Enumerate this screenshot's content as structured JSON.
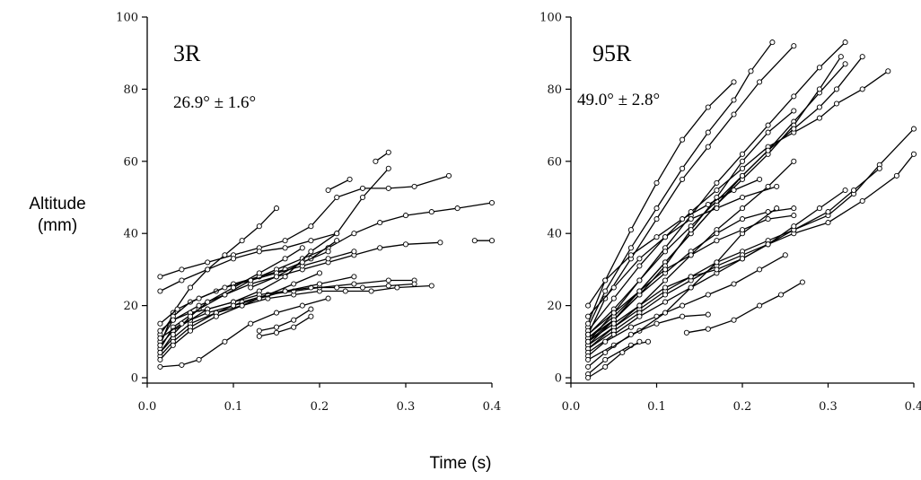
{
  "figure": {
    "ylabel_line1": "Altitude",
    "ylabel_line2": "(mm)",
    "xlabel": "Time (s)"
  },
  "chart_data": [
    {
      "type": "line",
      "title": "3R",
      "annotation": "26.9° ± 1.6°",
      "xlim": [
        0,
        0.4
      ],
      "ylim": [
        0,
        100
      ],
      "xticks": [
        "0.0",
        "0.1",
        "0.2",
        "0.3",
        "0.4"
      ],
      "yticks": [
        "0",
        "20",
        "40",
        "60",
        "80",
        "100"
      ],
      "series": [
        {
          "x": [
            0.015,
            0.03,
            0.05,
            0.07,
            0.09,
            0.11,
            0.13,
            0.15
          ],
          "y": [
            9,
            18,
            25,
            30,
            34,
            38,
            42,
            47
          ]
        },
        {
          "x": [
            0.015,
            0.03,
            0.06,
            0.09,
            0.12,
            0.15,
            0.18,
            0.21,
            0.24,
            0.27,
            0.3,
            0.33,
            0.36,
            0.4
          ],
          "y": [
            8,
            14,
            19,
            23,
            27,
            30,
            33,
            36,
            40,
            43,
            45,
            46,
            47,
            48.5
          ]
        },
        {
          "x": [
            0.015,
            0.04,
            0.07,
            0.1,
            0.13,
            0.16,
            0.19,
            0.22,
            0.25,
            0.28,
            0.31,
            0.35
          ],
          "y": [
            28,
            30,
            32,
            34,
            36,
            38,
            42,
            50,
            52.5,
            52.5,
            53,
            56
          ]
        },
        {
          "x": [
            0.015,
            0.04,
            0.07,
            0.1,
            0.13,
            0.16,
            0.19,
            0.22,
            0.25,
            0.28
          ],
          "y": [
            24,
            27,
            30,
            33,
            35,
            36,
            38,
            40,
            50,
            58
          ]
        },
        {
          "x": [
            0.015,
            0.03,
            0.05,
            0.08,
            0.11,
            0.14,
            0.17,
            0.2,
            0.23,
            0.26,
            0.29,
            0.33
          ],
          "y": [
            7,
            11,
            15,
            18,
            20,
            22,
            23,
            24,
            24,
            24,
            25,
            25.5
          ]
        },
        {
          "x": [
            0.015,
            0.03,
            0.05,
            0.08,
            0.11,
            0.14,
            0.17,
            0.2,
            0.24,
            0.28,
            0.31
          ],
          "y": [
            6,
            10,
            14,
            18,
            21,
            23,
            24,
            25,
            26,
            27,
            27
          ]
        },
        {
          "x": [
            0.015,
            0.03,
            0.06,
            0.09,
            0.12,
            0.15,
            0.18,
            0.21,
            0.24,
            0.27,
            0.3,
            0.34
          ],
          "y": [
            10,
            16,
            20,
            23,
            26,
            28,
            30,
            32,
            34,
            36,
            37,
            37.5
          ]
        },
        {
          "x": [
            0.015,
            0.03,
            0.05,
            0.08,
            0.1,
            0.13,
            0.16,
            0.19,
            0.22
          ],
          "y": [
            12,
            17,
            21,
            24,
            26,
            28,
            30,
            33,
            38
          ]
        },
        {
          "x": [
            0.015,
            0.03,
            0.05,
            0.08,
            0.11,
            0.14,
            0.17,
            0.2
          ],
          "y": [
            5,
            9,
            13,
            17,
            20,
            23,
            26,
            29
          ]
        },
        {
          "x": [
            0.015,
            0.035,
            0.06,
            0.09,
            0.12,
            0.15,
            0.18,
            0.21,
            0.24
          ],
          "y": [
            15,
            19,
            22,
            25,
            27,
            29,
            31,
            33,
            35
          ]
        },
        {
          "x": [
            0.015,
            0.03,
            0.05,
            0.07,
            0.1,
            0.13,
            0.16,
            0.19,
            0.22
          ],
          "y": [
            13,
            16,
            18,
            19,
            21,
            24,
            28,
            35,
            40
          ]
        },
        {
          "x": [
            0.015,
            0.04,
            0.06,
            0.09,
            0.12,
            0.15,
            0.18,
            0.21
          ],
          "y": [
            3,
            3.5,
            5,
            10,
            15,
            18,
            20,
            22
          ]
        },
        {
          "x": [
            0.015,
            0.03,
            0.05,
            0.07,
            0.1,
            0.13,
            0.16,
            0.19,
            0.22,
            0.25,
            0.28,
            0.31
          ],
          "y": [
            9,
            13,
            16,
            19,
            21,
            23,
            24,
            25,
            25,
            25,
            25.5,
            26
          ]
        },
        {
          "x": [
            0.13,
            0.15,
            0.17,
            0.19
          ],
          "y": [
            11.5,
            12.5,
            14,
            17
          ]
        },
        {
          "x": [
            0.13,
            0.15,
            0.17,
            0.19
          ],
          "y": [
            13,
            14,
            16,
            19
          ]
        },
        {
          "x": [
            0.12,
            0.15,
            0.18,
            0.21
          ],
          "y": [
            25,
            28,
            32,
            35
          ]
        },
        {
          "x": [
            0.265,
            0.28
          ],
          "y": [
            60,
            62.5
          ]
        },
        {
          "x": [
            0.21,
            0.235
          ],
          "y": [
            52,
            55
          ]
        },
        {
          "x": [
            0.38,
            0.4
          ],
          "y": [
            38,
            38
          ]
        },
        {
          "x": [
            0.015,
            0.03,
            0.05,
            0.07,
            0.1,
            0.13,
            0.16,
            0.18
          ],
          "y": [
            7,
            12,
            17,
            21,
            25,
            29,
            33,
            36
          ]
        },
        {
          "x": [
            0.015,
            0.04,
            0.07,
            0.1,
            0.13,
            0.16,
            0.2,
            0.24
          ],
          "y": [
            11,
            15,
            18,
            20,
            22,
            24,
            26,
            28
          ]
        }
      ]
    },
    {
      "type": "line",
      "title": "95R",
      "annotation": "49.0° ± 2.8°",
      "xlim": [
        0,
        0.4
      ],
      "ylim": [
        0,
        100
      ],
      "xticks": [
        "0.0",
        "0.1",
        "0.2",
        "0.3",
        "0.4"
      ],
      "yticks": [
        "0",
        "20",
        "40",
        "60",
        "80",
        "100"
      ],
      "series": [
        {
          "x": [
            0.02,
            0.04,
            0.07,
            0.1,
            0.13,
            0.16,
            0.19,
            0.21,
            0.235
          ],
          "y": [
            14,
            24,
            36,
            47,
            58,
            68,
            77,
            85,
            93
          ]
        },
        {
          "x": [
            0.02,
            0.04,
            0.07,
            0.1,
            0.13,
            0.16,
            0.19,
            0.22,
            0.26
          ],
          "y": [
            12,
            22,
            33,
            44,
            55,
            64,
            73,
            82,
            92
          ]
        },
        {
          "x": [
            0.02,
            0.05,
            0.08,
            0.11,
            0.14,
            0.17,
            0.2,
            0.23,
            0.26,
            0.29,
            0.32
          ],
          "y": [
            10,
            18,
            27,
            36,
            45,
            54,
            62,
            70,
            78,
            86,
            93
          ]
        },
        {
          "x": [
            0.02,
            0.05,
            0.08,
            0.11,
            0.14,
            0.17,
            0.2,
            0.23,
            0.26,
            0.29,
            0.32
          ],
          "y": [
            9,
            16,
            24,
            32,
            40,
            48,
            56,
            63,
            71,
            79,
            87
          ]
        },
        {
          "x": [
            0.02,
            0.05,
            0.08,
            0.11,
            0.14,
            0.17,
            0.2,
            0.23,
            0.26,
            0.29,
            0.315
          ],
          "y": [
            11,
            17,
            24,
            32,
            40,
            48,
            55,
            62,
            70,
            80,
            89
          ]
        },
        {
          "x": [
            0.02,
            0.05,
            0.08,
            0.11,
            0.14,
            0.17,
            0.2,
            0.23,
            0.26,
            0.29,
            0.31,
            0.34,
            0.37
          ],
          "y": [
            13,
            22,
            31,
            39,
            46,
            52,
            58,
            64,
            68,
            72,
            76,
            80,
            85
          ]
        },
        {
          "x": [
            0.02,
            0.05,
            0.08,
            0.11,
            0.14,
            0.17,
            0.2,
            0.23,
            0.26,
            0.29,
            0.31,
            0.34
          ],
          "y": [
            12,
            19,
            27,
            35,
            42,
            49,
            56,
            63,
            69,
            75,
            80,
            89
          ]
        },
        {
          "x": [
            0.02,
            0.05,
            0.08,
            0.11,
            0.14,
            0.17,
            0.2,
            0.23,
            0.26
          ],
          "y": [
            11,
            16,
            23,
            31,
            41,
            50,
            60,
            68,
            74
          ]
        },
        {
          "x": [
            0.02,
            0.04,
            0.07,
            0.1,
            0.13,
            0.16,
            0.19
          ],
          "y": [
            15,
            27,
            41,
            54,
            66,
            75,
            82
          ]
        },
        {
          "x": [
            0.02,
            0.05,
            0.08,
            0.11,
            0.14,
            0.17,
            0.2,
            0.23,
            0.26
          ],
          "y": [
            8,
            14,
            20,
            27,
            34,
            41,
            47,
            53,
            60
          ]
        },
        {
          "x": [
            0.02,
            0.05,
            0.08,
            0.11,
            0.14,
            0.17,
            0.2,
            0.23,
            0.26
          ],
          "y": [
            10,
            16,
            23,
            29,
            35,
            40,
            44,
            46,
            47
          ]
        },
        {
          "x": [
            0.02,
            0.05,
            0.08,
            0.11,
            0.14,
            0.17,
            0.2,
            0.23,
            0.26,
            0.3,
            0.33,
            0.36,
            0.4
          ],
          "y": [
            9,
            14,
            19,
            24,
            28,
            32,
            35,
            38,
            41,
            45,
            51,
            59,
            69
          ]
        },
        {
          "x": [
            0.02,
            0.05,
            0.08,
            0.11,
            0.14,
            0.17,
            0.2,
            0.23,
            0.26,
            0.3,
            0.34,
            0.38,
            0.4
          ],
          "y": [
            8,
            13,
            18,
            23,
            27,
            31,
            34,
            37,
            40,
            43,
            49,
            56,
            62
          ]
        },
        {
          "x": [
            0.02,
            0.05,
            0.08,
            0.11,
            0.14,
            0.17,
            0.2,
            0.23,
            0.26,
            0.3,
            0.33,
            0.36
          ],
          "y": [
            7,
            12,
            17,
            21,
            25,
            29,
            33,
            37,
            41,
            46,
            52,
            58
          ]
        },
        {
          "x": [
            0.02,
            0.04,
            0.07,
            0.1,
            0.13,
            0.16,
            0.19,
            0.22,
            0.25
          ],
          "y": [
            6,
            10,
            14,
            17,
            20,
            23,
            26,
            30,
            34
          ]
        },
        {
          "x": [
            0.02,
            0.05,
            0.08,
            0.11,
            0.14,
            0.17,
            0.2,
            0.24
          ],
          "y": [
            5,
            9,
            13,
            18,
            25,
            32,
            40,
            47
          ]
        },
        {
          "x": [
            0.02,
            0.04,
            0.07,
            0.1,
            0.13,
            0.16
          ],
          "y": [
            3,
            7,
            12,
            15,
            17,
            17.5
          ]
        },
        {
          "x": [
            0.02,
            0.04,
            0.07,
            0.09
          ],
          "y": [
            1,
            5,
            9,
            10
          ]
        },
        {
          "x": [
            0.02,
            0.05,
            0.08,
            0.11,
            0.14,
            0.17,
            0.2,
            0.24
          ],
          "y": [
            17,
            25,
            33,
            39,
            44,
            47,
            50,
            53
          ]
        },
        {
          "x": [
            0.02,
            0.05,
            0.08,
            0.11,
            0.14,
            0.17,
            0.2,
            0.23,
            0.26,
            0.29,
            0.32
          ],
          "y": [
            10,
            15,
            20,
            25,
            28,
            30,
            33,
            37,
            42,
            47,
            52
          ]
        },
        {
          "x": [
            0.02,
            0.05,
            0.08,
            0.11,
            0.14,
            0.17,
            0.2,
            0.23,
            0.26
          ],
          "y": [
            12,
            18,
            24,
            30,
            34,
            38,
            41,
            44,
            45
          ]
        },
        {
          "x": [
            0.135,
            0.16,
            0.19,
            0.22,
            0.245,
            0.27
          ],
          "y": [
            12.5,
            13.5,
            16,
            20,
            23,
            26.5
          ]
        },
        {
          "x": [
            0.02,
            0.04,
            0.07,
            0.1,
            0.13,
            0.16,
            0.19,
            0.22
          ],
          "y": [
            20,
            27,
            34,
            39,
            44,
            48,
            52,
            55
          ]
        },
        {
          "x": [
            0.02,
            0.04,
            0.06,
            0.08
          ],
          "y": [
            0,
            3,
            7,
            10
          ]
        }
      ]
    }
  ]
}
